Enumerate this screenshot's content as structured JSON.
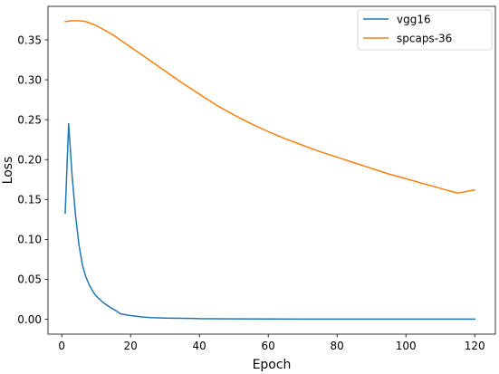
{
  "chart_data": {
    "type": "line",
    "xlabel": "Epoch",
    "ylabel": "Loss",
    "xlim": [
      -4,
      126
    ],
    "ylim": [
      -0.0187,
      0.392
    ],
    "xticks": [
      0,
      20,
      40,
      60,
      80,
      100,
      120
    ],
    "yticks": [
      0.0,
      0.05,
      0.1,
      0.15,
      0.2,
      0.25,
      0.3,
      0.35
    ],
    "xtick_labels": [
      "0",
      "20",
      "40",
      "60",
      "80",
      "100",
      "120"
    ],
    "ytick_labels": [
      "0.00",
      "0.05",
      "0.10",
      "0.15",
      "0.20",
      "0.25",
      "0.30",
      "0.35"
    ],
    "grid": false,
    "legend_position": "top-right",
    "series": [
      {
        "name": "vgg16",
        "color": "#1f77b4",
        "x": [
          1,
          2,
          3,
          4,
          5,
          6,
          7,
          8,
          9,
          10,
          12,
          14,
          16,
          17,
          18,
          20,
          22,
          24,
          26,
          30,
          35,
          38,
          40,
          50,
          60,
          70,
          80,
          90,
          100,
          110,
          120
        ],
        "y": [
          0.133,
          0.245,
          0.18,
          0.13,
          0.093,
          0.068,
          0.053,
          0.043,
          0.035,
          0.029,
          0.021,
          0.015,
          0.01,
          0.007,
          0.006,
          0.0045,
          0.0035,
          0.0025,
          0.002,
          0.0015,
          0.0012,
          0.001,
          0.0007,
          0.0004,
          0.0003,
          0.0002,
          0.0002,
          0.0002,
          0.0002,
          0.0002,
          0.0002
        ]
      },
      {
        "name": "spcaps-36",
        "color": "#ff7f0e",
        "x": [
          1,
          3,
          5,
          7,
          10,
          15,
          20,
          25,
          30,
          35,
          40,
          45,
          50,
          55,
          60,
          65,
          70,
          75,
          80,
          85,
          90,
          95,
          100,
          105,
          110,
          115,
          120
        ],
        "y": [
          0.373,
          0.374,
          0.374,
          0.373,
          0.368,
          0.356,
          0.341,
          0.326,
          0.311,
          0.296,
          0.282,
          0.268,
          0.256,
          0.245,
          0.235,
          0.226,
          0.218,
          0.21,
          0.203,
          0.196,
          0.189,
          0.182,
          0.176,
          0.17,
          0.164,
          0.158,
          0.162
        ]
      }
    ]
  }
}
